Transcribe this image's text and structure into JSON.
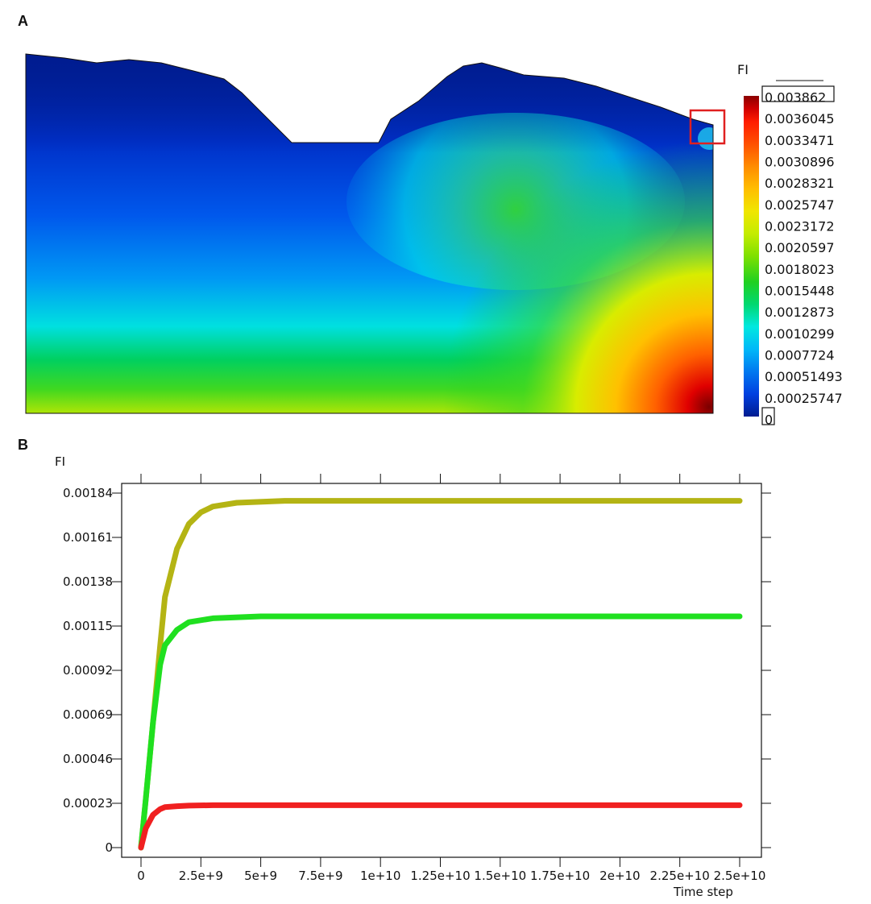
{
  "panel_a": {
    "label": "A",
    "colorbar": {
      "title": "FI",
      "labels": [
        "0.003862",
        "0.0036045",
        "0.0033471",
        "0.0030896",
        "0.0028321",
        "0.0025747",
        "0.0023172",
        "0.0020597",
        "0.0018023",
        "0.0015448",
        "0.0012873",
        "0.0010299",
        "0.0007724",
        "0.00051493",
        "0.00025747",
        "0"
      ],
      "colors": [
        "#8b0000",
        "#d00000",
        "#ff1c00",
        "#ff5000",
        "#ff8c00",
        "#ffbe00",
        "#f0e600",
        "#c4ec00",
        "#7ee000",
        "#20d020",
        "#00d870",
        "#00e8e0",
        "#00b8f8",
        "#0078f0",
        "#0040e0",
        "#001c90"
      ]
    },
    "highlight_box_color": "#e02020"
  },
  "panel_b": {
    "label": "B"
  },
  "chart_data": {
    "type": "line",
    "ylabel": "FI",
    "xlabel": "Time step",
    "xlim": [
      0,
      25000000000
    ],
    "ylim": [
      0,
      0.00184
    ],
    "x_tick_labels": [
      "0",
      "2.5e+9",
      "5e+9",
      "7.5e+9",
      "1e+10",
      "1.25e+10",
      "1.5e+10",
      "1.75e+10",
      "2e+10",
      "2.25e+10",
      "2.5e+10"
    ],
    "y_tick_labels": [
      "0",
      "0.00023",
      "0.00046",
      "0.00069",
      "0.00092",
      "0.00115",
      "0.00138",
      "0.00161",
      "0.00184"
    ],
    "y_tick_values": [
      0,
      0.00023,
      0.00046,
      0.00069,
      0.00092,
      0.00115,
      0.00138,
      0.00161,
      0.00184
    ],
    "series": [
      {
        "color": "#b4b414",
        "x": [
          0,
          200000000,
          500000000,
          800000000,
          1000000000,
          1500000000,
          2000000000,
          2500000000,
          3000000000,
          4000000000,
          6000000000,
          10000000000,
          15000000000,
          20000000000,
          25000000000
        ],
        "y": [
          0,
          0.00025,
          0.00065,
          0.00105,
          0.0013,
          0.00155,
          0.00168,
          0.00174,
          0.00177,
          0.00179,
          0.0018,
          0.0018,
          0.0018,
          0.0018,
          0.0018
        ]
      },
      {
        "color": "#20e020",
        "x": [
          0,
          200000000,
          500000000,
          800000000,
          1000000000,
          1500000000,
          2000000000,
          3000000000,
          5000000000,
          10000000000,
          15000000000,
          20000000000,
          25000000000
        ],
        "y": [
          0,
          0.00025,
          0.00065,
          0.00095,
          0.00105,
          0.00113,
          0.00117,
          0.00119,
          0.0012,
          0.0012,
          0.0012,
          0.0012,
          0.0012
        ]
      },
      {
        "color": "#f02020",
        "x": [
          0,
          200000000,
          500000000,
          800000000,
          1000000000,
          1500000000,
          2000000000,
          3000000000,
          5000000000,
          10000000000,
          15000000000,
          20000000000,
          25000000000
        ],
        "y": [
          0,
          0.0001,
          0.00017,
          0.0002,
          0.00021,
          0.000215,
          0.000218,
          0.00022,
          0.00022,
          0.00022,
          0.00022,
          0.00022,
          0.00022
        ]
      }
    ]
  }
}
